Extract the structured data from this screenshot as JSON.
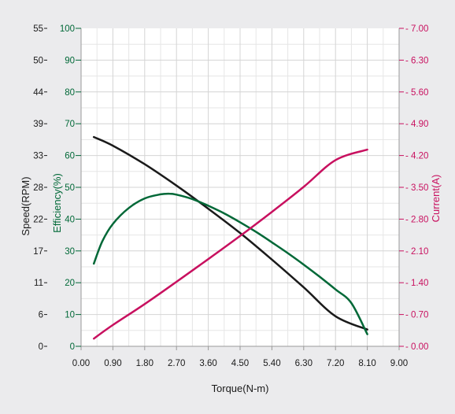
{
  "colors": {
    "background": "#ebebed",
    "plot_background": "#ffffff",
    "grid": "#d4d4d4",
    "axis": "#9a9a9a",
    "speed": "#1a1a1a",
    "efficiency": "#006837",
    "current": "#c8105f"
  },
  "chart_data": {
    "type": "line",
    "title": "",
    "xlabel": "Torque(N-m)",
    "xlim": [
      0,
      9
    ],
    "x_ticks": [
      "0.00",
      "0.90",
      "1.80",
      "2.70",
      "3.60",
      "4.50",
      "5.40",
      "6.30",
      "7.20",
      "8.10",
      "9.00"
    ],
    "grid": true,
    "legend": "none",
    "axes": {
      "speed": {
        "label": "Speed(RPM)",
        "side": "left",
        "ylim": [
          0,
          55
        ],
        "ticks": [
          0,
          6,
          11,
          17,
          22,
          28,
          33,
          39,
          44,
          50,
          55
        ],
        "tick_labels": [
          "0",
          "6",
          "11",
          "17",
          "22",
          "28",
          "33",
          "39",
          "44",
          "50",
          "55"
        ]
      },
      "efficiency": {
        "label": "Efficiency(%)",
        "side": "left",
        "ylim": [
          0,
          100
        ],
        "ticks": [
          0,
          10,
          20,
          30,
          40,
          50,
          60,
          70,
          80,
          90,
          100
        ],
        "tick_labels": [
          "0",
          "10",
          "20",
          "30",
          "40",
          "50",
          "60",
          "70",
          "80",
          "90",
          "100"
        ]
      },
      "current": {
        "label": "Current(A)",
        "side": "right",
        "ylim": [
          0,
          7
        ],
        "ticks": [
          0,
          0.7,
          1.4,
          2.1,
          2.8,
          3.5,
          4.2,
          4.9,
          5.6,
          6.3,
          7.0
        ],
        "tick_labels": [
          "0.00",
          "0.70",
          "1.40",
          "2.10",
          "2.80",
          "3.50",
          "4.20",
          "4.90",
          "5.60",
          "6.30",
          "7.00"
        ]
      }
    },
    "series": [
      {
        "axis": "speed",
        "x": [
          0.36,
          0.9,
          1.8,
          2.7,
          3.6,
          4.5,
          5.4,
          6.3,
          7.2,
          8.1
        ],
        "y": [
          36.2,
          34.7,
          31.5,
          27.8,
          23.8,
          19.6,
          15.0,
          10.2,
          5.2,
          2.9
        ]
      },
      {
        "axis": "efficiency",
        "x": [
          0.36,
          0.6,
          0.9,
          1.35,
          1.8,
          2.25,
          2.5,
          2.7,
          3.15,
          3.6,
          4.05,
          4.5,
          4.95,
          5.4,
          5.85,
          6.3,
          6.75,
          7.2,
          7.65,
          8.1
        ],
        "y": [
          26,
          33,
          38.5,
          43.5,
          46.5,
          47.8,
          48,
          47.7,
          46.3,
          44.2,
          41.8,
          39,
          36,
          32.7,
          29.3,
          25.7,
          21.9,
          17.9,
          13.6,
          3.8
        ]
      },
      {
        "axis": "current",
        "x": [
          0.36,
          0.9,
          1.8,
          2.7,
          3.6,
          4.5,
          5.4,
          6.3,
          7.2,
          8.1
        ],
        "y": [
          0.17,
          0.47,
          0.93,
          1.42,
          1.92,
          2.43,
          2.96,
          3.51,
          4.1,
          4.33
        ]
      }
    ]
  }
}
